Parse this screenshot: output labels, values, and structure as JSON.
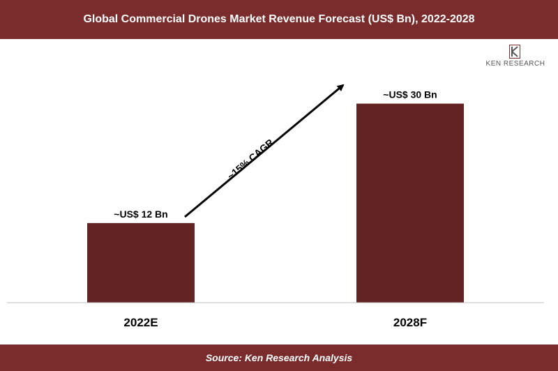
{
  "header": {
    "title": "Global Commercial Drones Market Revenue Forecast (US$ Bn), 2022-2028"
  },
  "footer": {
    "source": "Source: Ken Research Analysis"
  },
  "logo": {
    "text": "KEN RESEARCH",
    "icon": "ken-research-logo-icon"
  },
  "colors": {
    "bar": "#632322",
    "banner": "#7a2b2b",
    "arrow": "#000000"
  },
  "chart_data": {
    "type": "bar",
    "title": "Global Commercial Drones Market Revenue Forecast (US$ Bn), 2022-2028",
    "categories": [
      "2022E",
      "2028F"
    ],
    "values": [
      12,
      30
    ],
    "data_labels": [
      "~US$ 12 Bn",
      "~US$ 30 Bn"
    ],
    "unit": "US$ Bn",
    "annotation": "~15% CAGR",
    "ylim": [
      0,
      37
    ],
    "grid": false
  }
}
